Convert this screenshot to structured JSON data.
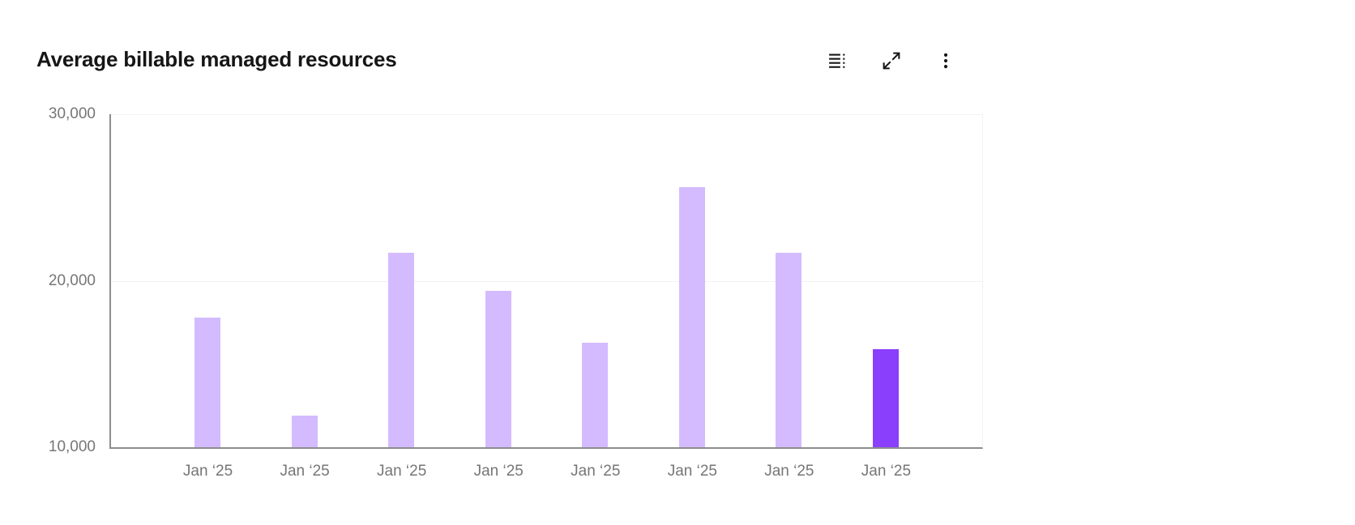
{
  "header": {
    "title": "Average billable managed resources",
    "toolbar": {
      "icons": [
        "data-table-icon",
        "expand-icon",
        "overflow-menu-icon"
      ]
    }
  },
  "colors": {
    "title_text": "#161616",
    "axis_line": "#8d8d8d",
    "gridline": "#f2f2f2",
    "tick_text": "#767676",
    "icon": "#161616"
  },
  "chart_data": {
    "type": "bar",
    "title": "Average billable managed resources",
    "categories": [
      "Jan ‘25",
      "Jan ‘25",
      "Jan ‘25",
      "Jan ‘25",
      "Jan ‘25",
      "Jan ‘25",
      "Jan ‘25",
      "Jan ‘25"
    ],
    "values": [
      17800,
      11900,
      21700,
      19400,
      16300,
      25600,
      21700,
      15900
    ],
    "xlabel": "",
    "ylabel": "",
    "ylim": [
      10000,
      30000
    ],
    "yticks": [
      10000,
      20000,
      30000
    ],
    "ytick_labels": [
      "10,000",
      "20,000",
      "30,000"
    ],
    "grid": true,
    "legend": "none",
    "bar_color": "#d4bbff",
    "highlight_color": "#8a3ffc",
    "highlighted_index": 7
  }
}
